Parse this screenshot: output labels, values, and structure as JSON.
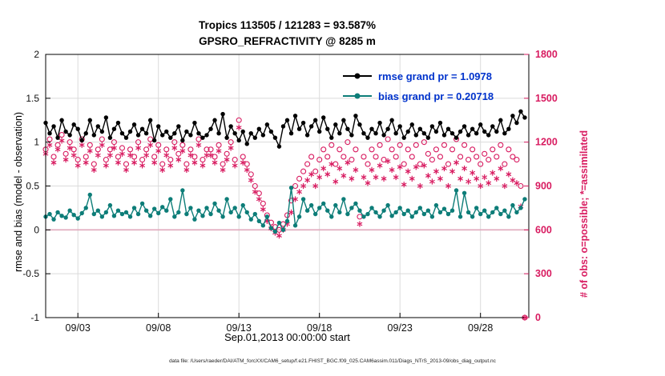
{
  "title_line1": "Tropics 113505 / 121283 = 93.587%",
  "title_line2": "GPSRO_REFRACTIVITY @ 8285 m",
  "legend": {
    "rmse_label": "rmse grand pr = 1.0978",
    "bias_label": "bias grand pr = 0.20718"
  },
  "caption": "data file: /Users/raeder/DAI/ATM_forcXX/CAM6_setup/f.e21.FHIST_BGC.f09_025.CAM6assim.011/Diags_NTrS_2013-09/obs_diag_output.nc",
  "colors": {
    "rmse": "#000000",
    "bias": "#0D7D78",
    "obs": "#D81B60",
    "legend_text": "#0033CC",
    "zero_line": "#E0A9BC",
    "grid": "#DBDBDB",
    "axis": "#000000"
  },
  "chart_data": {
    "type": "line",
    "title": "Tropics 113505 / 121283 = 93.587% | GPSRO_REFRACTIVITY @ 8285 m",
    "xlabel": "Sep.01,2013 00:00:00 start",
    "ylabel_left": "rmse and bias (model - observation)",
    "ylabel_right": "# of obs: o=possible; *=assimilated",
    "grid": true,
    "x_range": [
      0,
      30
    ],
    "ylim_left": [
      -1,
      2
    ],
    "ylim_right": [
      0,
      1800
    ],
    "x_start": 0,
    "x_step": 0.25,
    "xticks": [
      {
        "d": 2,
        "t": "09/03"
      },
      {
        "d": 7,
        "t": "09/08"
      },
      {
        "d": 12,
        "t": "09/13"
      },
      {
        "d": 17,
        "t": "09/18"
      },
      {
        "d": 22,
        "t": "09/23"
      },
      {
        "d": 27,
        "t": "09/28"
      }
    ],
    "yticks_left": [
      {
        "v": -1,
        "t": "-1"
      },
      {
        "v": -0.5,
        "t": "-0.5"
      },
      {
        "v": 0,
        "t": "0"
      },
      {
        "v": 0.5,
        "t": "0.5"
      },
      {
        "v": 1,
        "t": "1"
      },
      {
        "v": 1.5,
        "t": "1.5"
      },
      {
        "v": 2,
        "t": "2"
      }
    ],
    "yticks_right": [
      {
        "v": 0,
        "t": "0"
      },
      {
        "v": 300,
        "t": "300"
      },
      {
        "v": 600,
        "t": "600"
      },
      {
        "v": 900,
        "t": "900"
      },
      {
        "v": 1200,
        "t": "1200"
      },
      {
        "v": 1500,
        "t": "1500"
      },
      {
        "v": 1800,
        "t": "1800"
      }
    ],
    "series": [
      {
        "name": "possible",
        "axis": "right",
        "marker": "circle",
        "color": "#D81B60",
        "values": [
          1150,
          1220,
          1100,
          1180,
          1250,
          1120,
          1200,
          1150,
          1080,
          1220,
          1100,
          1180,
          1050,
          1150,
          1220,
          1080,
          1150,
          1200,
          1100,
          1160,
          1050,
          1150,
          1100,
          1200,
          1080,
          1150,
          1220,
          1100,
          1180,
          1050,
          1150,
          1080,
          1200,
          1120,
          1180,
          1050,
          1150,
          1100,
          1220,
          1080,
          1150,
          1150,
          1100,
          1180,
          1050,
          1120,
          1200,
          1080,
          1350,
          1100,
          1050,
          980,
          900,
          850,
          780,
          700,
          650,
          620,
          600,
          640,
          700,
          800,
          900,
          950,
          1000,
          1050,
          1100,
          1000,
          1080,
          1150,
          1100,
          1180,
          1050,
          1150,
          1100,
          1200,
          1080,
          1150,
          690,
          1100,
          1050,
          1150,
          1100,
          1180,
          1080,
          1220,
          1150,
          1100,
          1180,
          1050,
          1150,
          1100,
          1180,
          1050,
          1200,
          1120,
          1080,
          1150,
          1100,
          1180,
          1050,
          1150,
          1220,
          1100,
          1180,
          1080,
          1150,
          1100,
          1050,
          1120,
          1080,
          1150,
          1100,
          1180,
          1050,
          1150,
          1100,
          1080,
          900,
          0
        ]
      },
      {
        "name": "assimilated",
        "axis": "right",
        "marker": "asterisk",
        "color": "#D81B60",
        "values": [
          1120,
          1180,
          1060,
          1150,
          1210,
          1080,
          1160,
          1110,
          1040,
          1180,
          1060,
          1140,
          1010,
          1110,
          1180,
          1040,
          1110,
          1160,
          1060,
          1120,
          1010,
          1110,
          1060,
          1160,
          1040,
          1110,
          1180,
          1060,
          1140,
          1010,
          1110,
          1040,
          1160,
          1080,
          1140,
          1010,
          1110,
          1060,
          1180,
          1040,
          1110,
          1110,
          1060,
          1140,
          1010,
          1080,
          1160,
          1040,
          1300,
          1060,
          1010,
          940,
          860,
          810,
          740,
          660,
          610,
          580,
          560,
          600,
          640,
          720,
          810,
          860,
          900,
          940,
          980,
          900,
          960,
          1020,
          980,
          1050,
          930,
          1020,
          970,
          1060,
          950,
          1010,
          640,
          960,
          920,
          1010,
          960,
          1040,
          950,
          1070,
          1010,
          960,
          1030,
          910,
          1000,
          950,
          1030,
          900,
          1040,
          970,
          930,
          1000,
          950,
          1020,
          900,
          1000,
          1060,
          950,
          1020,
          930,
          990,
          950,
          900,
          960,
          920,
          990,
          950,
          1020,
          900,
          980,
          940,
          920,
          760,
          0
        ]
      },
      {
        "name": "bias",
        "axis": "left",
        "marker": "line-dot",
        "color": "#0D7D78",
        "values": [
          0.15,
          0.18,
          0.12,
          0.2,
          0.16,
          0.14,
          0.22,
          0.17,
          0.13,
          0.19,
          0.25,
          0.4,
          0.18,
          0.22,
          0.15,
          0.2,
          0.28,
          0.16,
          0.22,
          0.18,
          0.2,
          0.15,
          0.25,
          0.18,
          0.3,
          0.22,
          0.16,
          0.24,
          0.19,
          0.26,
          0.22,
          0.35,
          0.15,
          0.2,
          0.45,
          0.18,
          0.25,
          0.12,
          0.22,
          0.16,
          0.25,
          0.18,
          0.3,
          0.22,
          0.15,
          0.35,
          0.2,
          0.25,
          0.15,
          0.28,
          0.2,
          0.12,
          0.18,
          0.1,
          0.05,
          0.15,
          0.02,
          -0.02,
          0.08,
          0.0,
          0.1,
          0.48,
          0.05,
          0.15,
          0.35,
          0.22,
          0.28,
          0.18,
          0.25,
          0.3,
          0.22,
          0.15,
          0.28,
          0.2,
          0.35,
          0.18,
          0.25,
          0.3,
          0.22,
          0.15,
          0.18,
          0.25,
          0.2,
          0.15,
          0.22,
          0.28,
          0.16,
          0.2,
          0.25,
          0.18,
          0.22,
          0.15,
          0.2,
          0.25,
          0.18,
          0.22,
          0.15,
          0.28,
          0.2,
          0.24,
          0.18,
          0.22,
          0.45,
          0.15,
          0.42,
          0.2,
          0.15,
          0.25,
          0.18,
          0.22,
          0.15,
          0.2,
          0.25,
          0.18,
          0.22,
          0.15,
          0.28,
          0.2,
          0.25,
          0.35
        ]
      },
      {
        "name": "rmse",
        "axis": "left",
        "marker": "line-dot",
        "color": "#000000",
        "values": [
          1.22,
          1.1,
          1.18,
          1.05,
          1.25,
          1.12,
          1.08,
          1.2,
          1.15,
          1.02,
          1.1,
          1.25,
          1.08,
          1.18,
          1.12,
          1.28,
          1.05,
          1.15,
          1.22,
          1.1,
          1.05,
          1.12,
          1.2,
          1.08,
          1.15,
          1.1,
          1.25,
          1.02,
          1.18,
          1.08,
          1.12,
          1.05,
          1.1,
          1.18,
          1.02,
          1.12,
          1.08,
          1.22,
          1.1,
          1.05,
          1.08,
          1.15,
          1.25,
          1.1,
          1.32,
          1.05,
          1.18,
          1.1,
          1.02,
          1.12,
          0.98,
          1.1,
          1.05,
          1.15,
          1.08,
          1.2,
          1.12,
          1.05,
          0.95,
          1.18,
          1.25,
          1.1,
          1.3,
          1.15,
          1.22,
          1.08,
          1.18,
          1.25,
          1.12,
          1.28,
          1.15,
          1.05,
          1.2,
          1.1,
          1.25,
          1.15,
          1.08,
          1.3,
          1.2,
          1.1,
          1.05,
          1.15,
          1.1,
          1.22,
          1.08,
          1.15,
          1.25,
          1.1,
          1.18,
          1.05,
          1.12,
          1.2,
          1.08,
          1.15,
          1.1,
          1.05,
          1.18,
          1.12,
          1.22,
          1.08,
          1.15,
          1.1,
          1.05,
          1.12,
          1.18,
          1.08,
          1.15,
          1.1,
          1.2,
          1.12,
          1.08,
          1.18,
          1.12,
          1.25,
          1.1,
          1.15,
          1.3,
          1.22,
          1.35,
          1.28
        ]
      }
    ]
  }
}
